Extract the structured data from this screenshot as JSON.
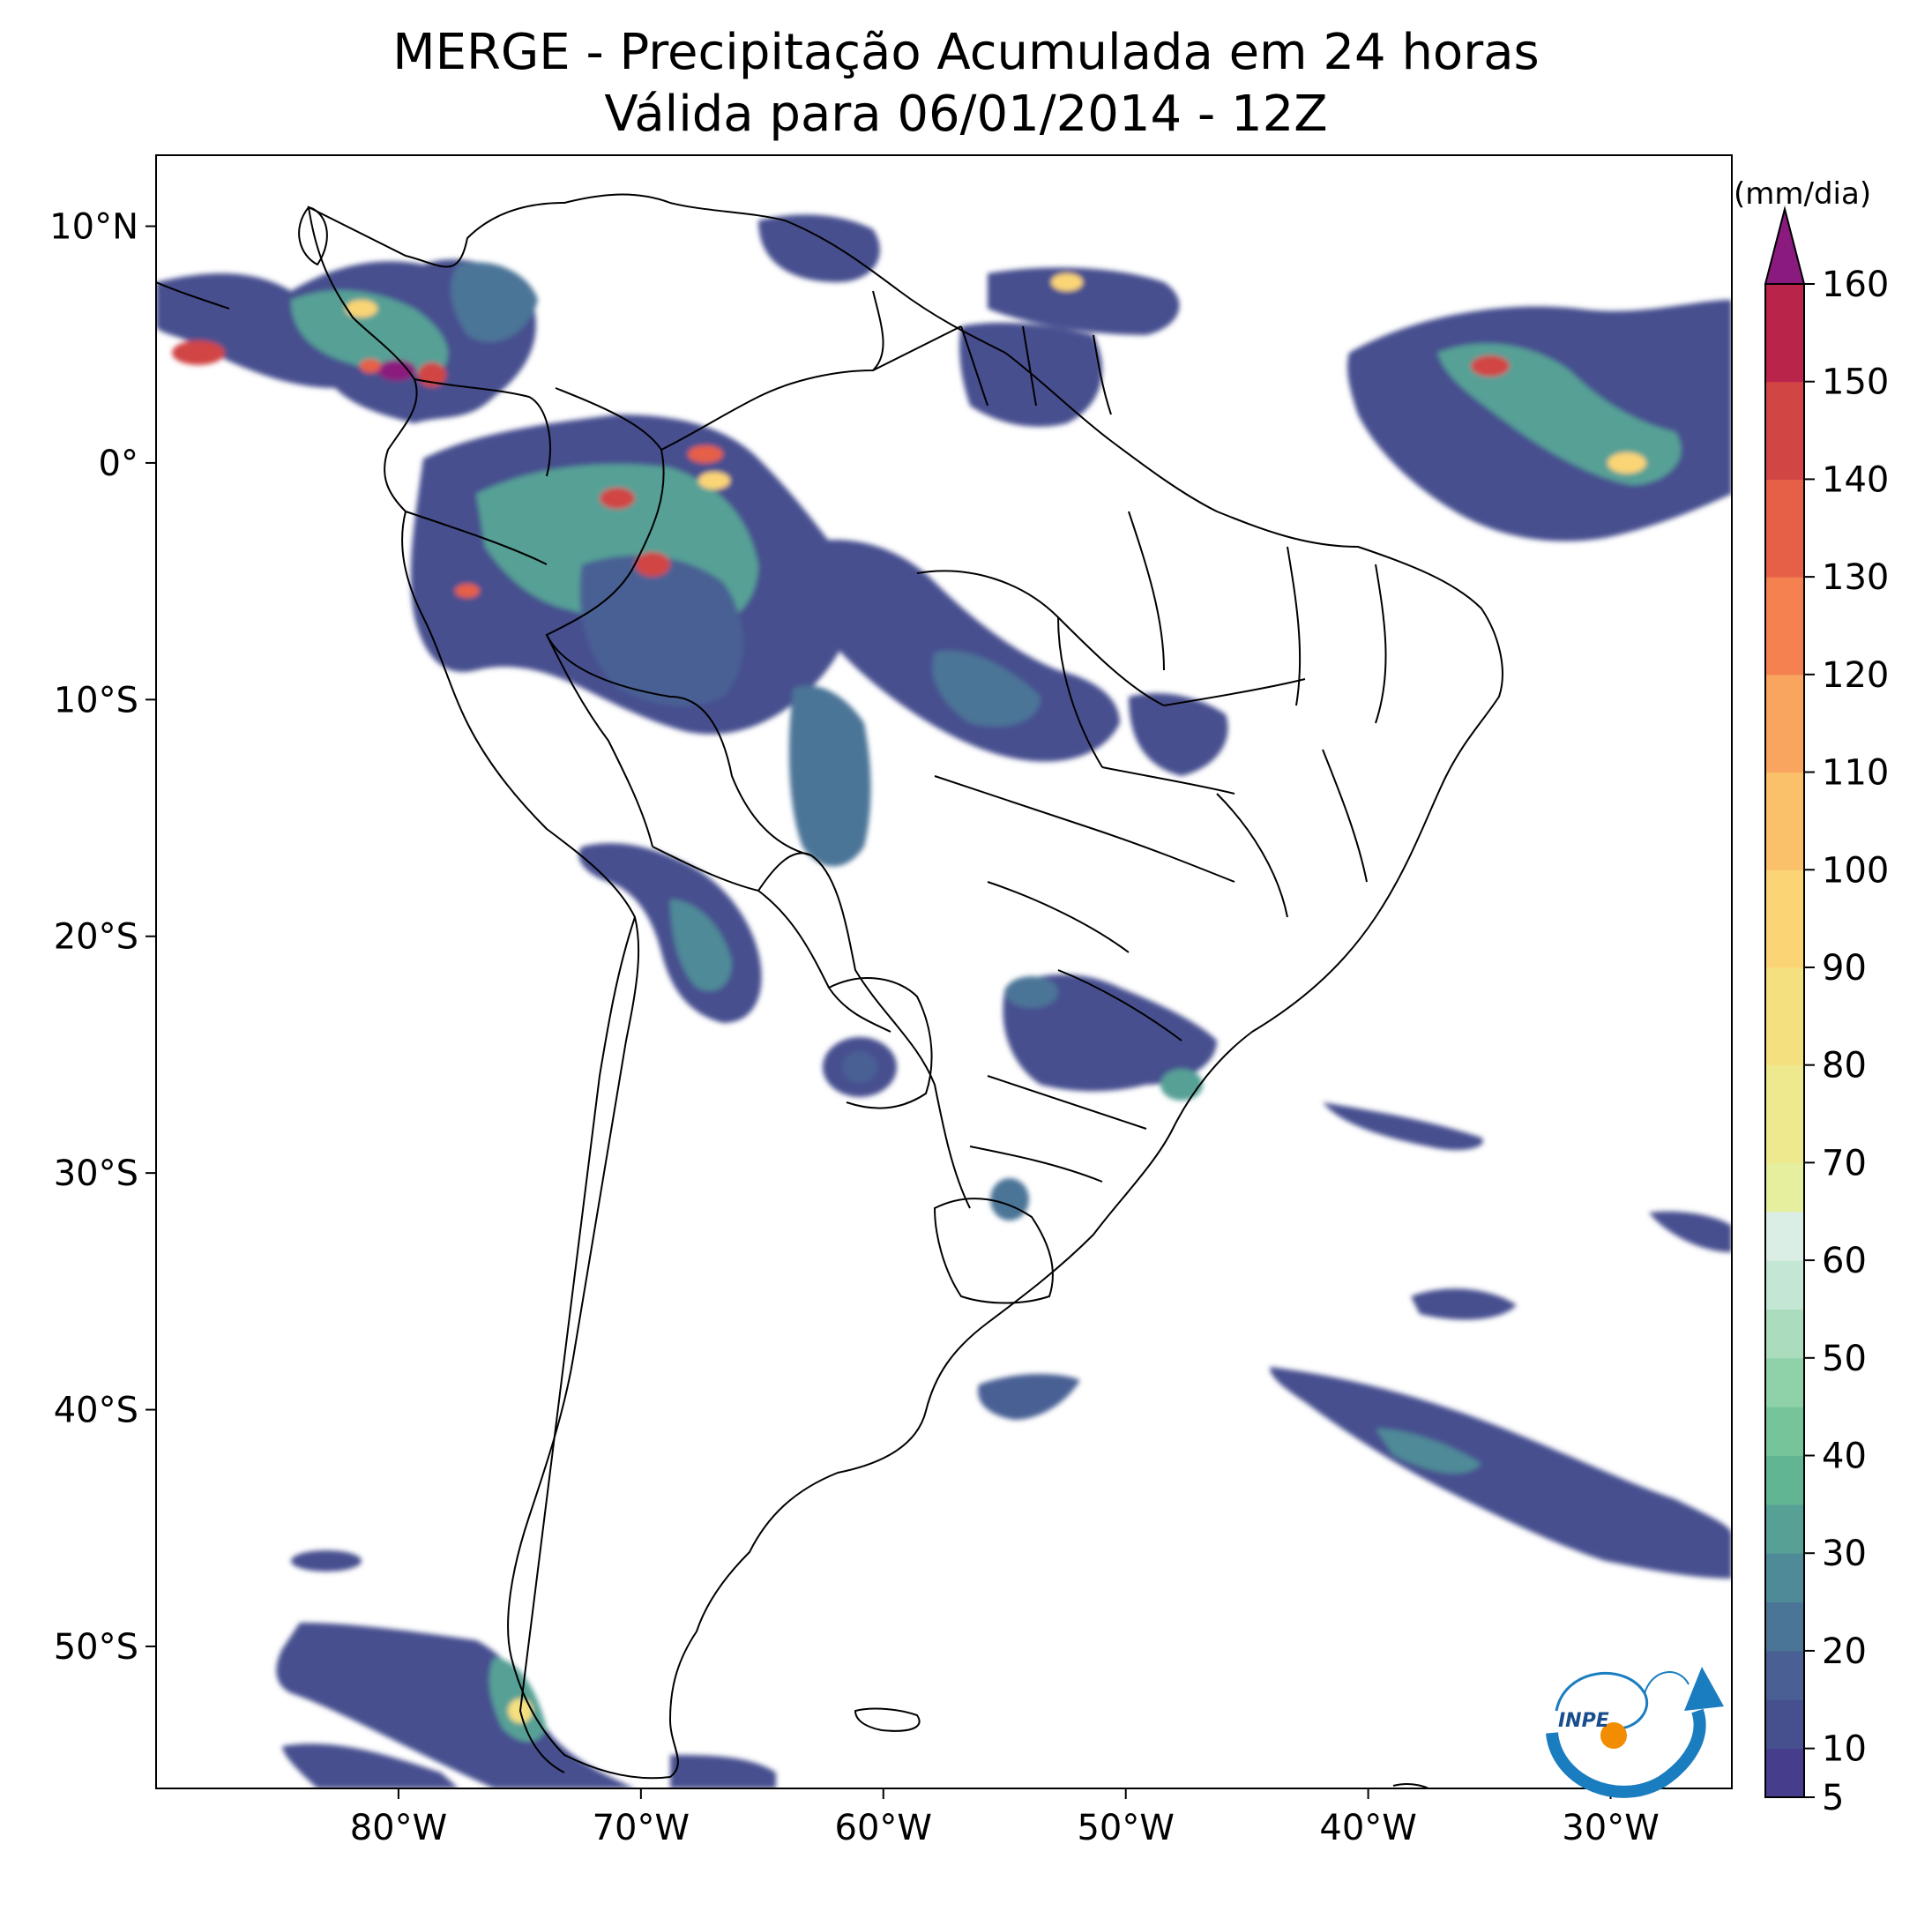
{
  "title": {
    "line1": "MERGE - Precipitação Acumulada em 24 horas",
    "line2": "Válida para 06/01/2014 - 12Z"
  },
  "map": {
    "lon_range": [
      -90,
      -25
    ],
    "lat_range": [
      -56,
      13
    ],
    "x_ticks": [
      {
        "lon": -80,
        "label": "80°W"
      },
      {
        "lon": -70,
        "label": "70°W"
      },
      {
        "lon": -60,
        "label": "60°W"
      },
      {
        "lon": -50,
        "label": "50°W"
      },
      {
        "lon": -40,
        "label": "40°W"
      },
      {
        "lon": -30,
        "label": "30°W"
      }
    ],
    "y_ticks": [
      {
        "lat": 10,
        "label": "10°N"
      },
      {
        "lat": 0,
        "label": "0°"
      },
      {
        "lat": -10,
        "label": "10°S"
      },
      {
        "lat": -20,
        "label": "20°S"
      },
      {
        "lat": -30,
        "label": "30°S"
      },
      {
        "lat": -40,
        "label": "40°S"
      },
      {
        "lat": -50,
        "label": "50°S"
      }
    ]
  },
  "colorbar": {
    "units": "(mm/dia)",
    "min": 5,
    "max": 160,
    "extend": "max",
    "extend_color": "#8b1a7e",
    "tick_labels": [
      "5",
      "10",
      "20",
      "30",
      "40",
      "50",
      "60",
      "70",
      "80",
      "90",
      "100",
      "110",
      "120",
      "130",
      "140",
      "150",
      "160"
    ],
    "tick_values": [
      5,
      10,
      20,
      30,
      40,
      50,
      60,
      70,
      80,
      90,
      100,
      110,
      120,
      130,
      140,
      150,
      160
    ],
    "bands": [
      {
        "from": 5,
        "to": 10,
        "color": "#463e8c"
      },
      {
        "from": 10,
        "to": 15,
        "color": "#47508f"
      },
      {
        "from": 15,
        "to": 20,
        "color": "#4a6094"
      },
      {
        "from": 20,
        "to": 25,
        "color": "#4b7597"
      },
      {
        "from": 25,
        "to": 30,
        "color": "#4f8a98"
      },
      {
        "from": 30,
        "to": 35,
        "color": "#56a096"
      },
      {
        "from": 35,
        "to": 40,
        "color": "#62b592"
      },
      {
        "from": 40,
        "to": 45,
        "color": "#76c59a"
      },
      {
        "from": 45,
        "to": 50,
        "color": "#8fd1a9"
      },
      {
        "from": 50,
        "to": 55,
        "color": "#aadcbd"
      },
      {
        "from": 55,
        "to": 60,
        "color": "#c4e6d4"
      },
      {
        "from": 60,
        "to": 65,
        "color": "#dbeee6"
      },
      {
        "from": 65,
        "to": 70,
        "color": "#e5ef9d"
      },
      {
        "from": 70,
        "to": 80,
        "color": "#eee98f"
      },
      {
        "from": 80,
        "to": 90,
        "color": "#f5e080"
      },
      {
        "from": 90,
        "to": 100,
        "color": "#fbd575"
      },
      {
        "from": 100,
        "to": 110,
        "color": "#fbc06a"
      },
      {
        "from": 110,
        "to": 120,
        "color": "#f9a55f"
      },
      {
        "from": 120,
        "to": 130,
        "color": "#f4814f"
      },
      {
        "from": 130,
        "to": 140,
        "color": "#e65f47"
      },
      {
        "from": 140,
        "to": 150,
        "color": "#d14545"
      },
      {
        "from": 150,
        "to": 160,
        "color": "#b8244a"
      }
    ]
  },
  "logo": {
    "text": "INPE",
    "blue": "#1a7dc0",
    "orange": "#f28c00"
  },
  "colors": {
    "land_outline": "#000000",
    "rain_light": "#463e8c"
  }
}
